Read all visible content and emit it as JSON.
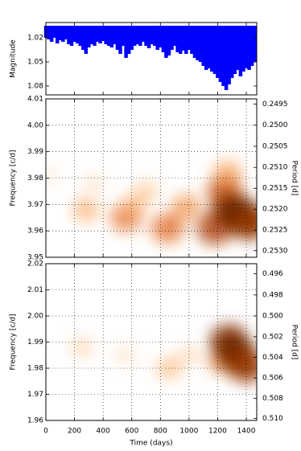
{
  "chart_data": [
    {
      "type": "lightcurve",
      "ylabel": "Magnitude",
      "color": "#0000ff",
      "baseline": 1.005,
      "x": [
        0,
        20,
        40,
        60,
        80,
        100,
        120,
        140,
        160,
        180,
        200,
        220,
        240,
        260,
        280,
        300,
        320,
        340,
        360,
        380,
        400,
        420,
        440,
        460,
        480,
        500,
        520,
        540,
        560,
        580,
        600,
        620,
        640,
        660,
        680,
        700,
        720,
        740,
        760,
        780,
        800,
        820,
        840,
        860,
        880,
        900,
        920,
        940,
        960,
        980,
        1000,
        1020,
        1040,
        1060,
        1080,
        1100,
        1120,
        1140,
        1160,
        1180,
        1200,
        1220,
        1240,
        1260,
        1280,
        1300,
        1320,
        1340,
        1360,
        1380,
        1400,
        1420,
        1440,
        1460
      ],
      "values": [
        1.02,
        1.022,
        1.025,
        1.02,
        1.027,
        1.023,
        1.025,
        1.022,
        1.028,
        1.03,
        1.025,
        1.027,
        1.03,
        1.035,
        1.04,
        1.032,
        1.028,
        1.03,
        1.025,
        1.027,
        1.024,
        1.028,
        1.03,
        1.032,
        1.028,
        1.035,
        1.04,
        1.03,
        1.045,
        1.04,
        1.035,
        1.03,
        1.028,
        1.03,
        1.025,
        1.03,
        1.033,
        1.028,
        1.03,
        1.035,
        1.032,
        1.038,
        1.045,
        1.042,
        1.035,
        1.03,
        1.038,
        1.04,
        1.036,
        1.04,
        1.035,
        1.04,
        1.045,
        1.048,
        1.05,
        1.055,
        1.06,
        1.058,
        1.062,
        1.065,
        1.07,
        1.075,
        1.08,
        1.085,
        1.078,
        1.07,
        1.065,
        1.06,
        1.068,
        1.062,
        1.058,
        1.06,
        1.055,
        1.05
      ],
      "xlim": [
        0,
        1473
      ],
      "xticks": [
        0,
        200,
        400,
        600,
        800,
        1000,
        1200,
        1400
      ],
      "ylim": [
        1.091,
        1.001
      ],
      "yticks": [
        1.02,
        1.05,
        1.08
      ],
      "grid": false
    },
    {
      "type": "heatmap",
      "ylabel": "Frequency [c/d]",
      "y2label": "Period [d]",
      "y2scale": "reciprocal",
      "x": [
        20,
        280,
        340,
        560,
        620,
        700,
        850,
        980,
        1180,
        1250,
        1290,
        1270,
        1380,
        1420
      ],
      "y": [
        3.981,
        3.968,
        3.978,
        3.965,
        3.97,
        3.975,
        3.961,
        3.969,
        3.961,
        3.975,
        3.968,
        3.982,
        3.965,
        3.963
      ],
      "values": [
        0.1,
        0.35,
        0.15,
        0.55,
        0.3,
        0.25,
        0.6,
        0.45,
        0.75,
        0.7,
        0.85,
        0.4,
        0.95,
        0.8
      ],
      "xlim": [
        0,
        1473
      ],
      "xticks": [
        0,
        200,
        400,
        600,
        800,
        1000,
        1200,
        1400
      ],
      "ylim": [
        3.95,
        4.01
      ],
      "yticks": [
        {
          "value": 4.01,
          "label": "4.01"
        },
        {
          "value": 4,
          "label": "4.00"
        },
        3.99,
        3.98,
        3.97,
        3.96,
        3.95
      ],
      "y2lim": [
        0.25316,
        0.24938
      ],
      "y2ticks": [
        0.2495,
        {
          "value": 0.25,
          "label": "0.2500"
        },
        0.2505,
        {
          "value": 0.251,
          "label": "0.2510"
        },
        0.2515,
        {
          "value": 0.252,
          "label": "0.2520"
        },
        0.2525,
        {
          "value": 0.253,
          "label": "0.2530"
        }
      ],
      "grid": true
    },
    {
      "type": "heatmap",
      "ylabel": "Frequency [c/d]",
      "y2label": "Period [d]",
      "y2scale": "reciprocal",
      "xlabel": "Time (days)",
      "x": [
        250,
        560,
        860,
        1000,
        1240,
        1280,
        1330,
        1400
      ],
      "y": [
        1.988,
        1.985,
        1.98,
        1.985,
        1.983,
        1.99,
        1.985,
        1.981
      ],
      "values": [
        0.2,
        0.15,
        0.3,
        0.2,
        0.5,
        0.85,
        0.9,
        0.8
      ],
      "xlim": [
        0,
        1473
      ],
      "xticks": [
        0,
        200,
        400,
        600,
        800,
        1000,
        1200,
        1400
      ],
      "ylim": [
        1.96,
        2.02
      ],
      "yticks": [
        {
          "value": 2.02,
          "label": "2.02"
        },
        2.01,
        {
          "value": 2,
          "label": "2.00"
        },
        1.99,
        1.98,
        1.97,
        1.96
      ],
      "y2lim": [
        0.510204,
        0.49505
      ],
      "y2ticks": [
        0.496,
        0.498,
        {
          "value": 0.5,
          "label": "0.500"
        },
        0.502,
        0.504,
        0.506,
        0.508,
        {
          "value": 0.51,
          "label": "0.510"
        }
      ],
      "grid": true
    }
  ]
}
